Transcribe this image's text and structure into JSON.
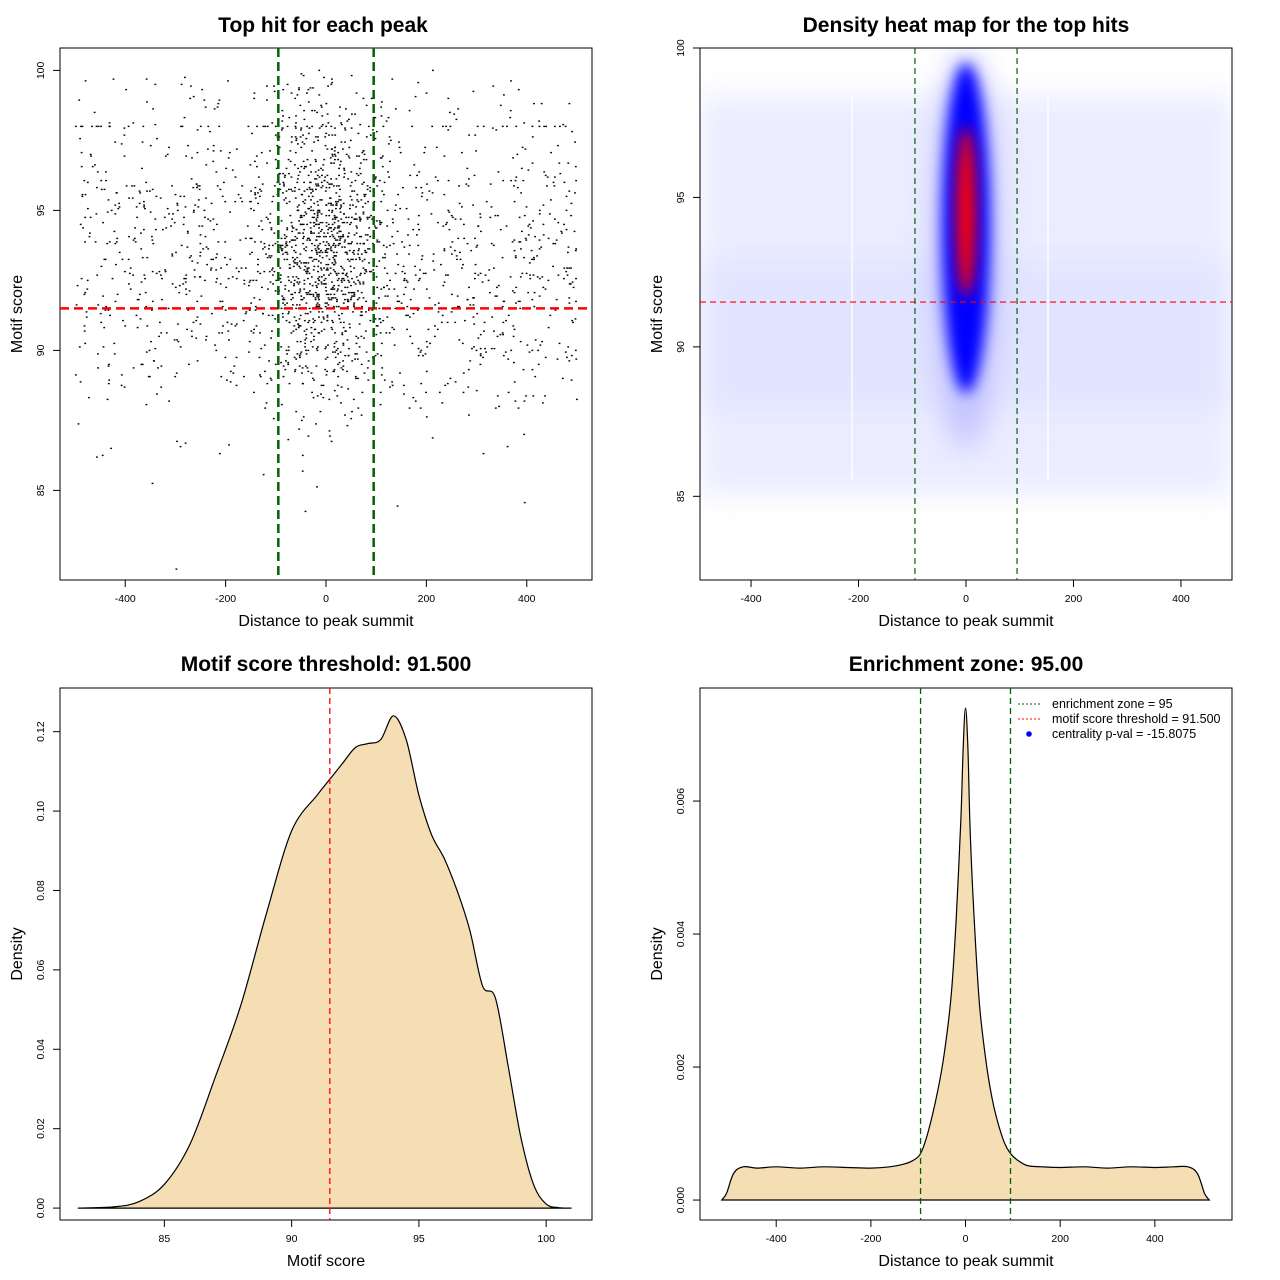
{
  "chart_data": [
    {
      "type": "scatter",
      "title": "Top hit for each peak",
      "xlabel": "Distance to peak summit",
      "ylabel": "Motif score",
      "xlim": [
        -530,
        530
      ],
      "ylim": [
        81.8,
        100.8
      ],
      "xticks": [
        -400,
        -200,
        0,
        200,
        400
      ],
      "yticks": [
        85,
        90,
        95,
        100
      ],
      "hline": {
        "y": 91.5,
        "color": "#ff0000"
      },
      "vlines": [
        {
          "x": -95,
          "color": "#006400"
        },
        {
          "x": 95,
          "color": "#006400"
        }
      ],
      "point_color": "#000000",
      "x_range": [
        -500,
        500
      ],
      "central_width": 60,
      "score_mean": 93.3,
      "score_sd": 3.1
    },
    {
      "type": "heatmap",
      "title": "Density heat map for the top hits",
      "xlabel": "Distance to peak summit",
      "ylabel": "Motif score",
      "xlim": [
        -495,
        495
      ],
      "ylim": [
        82.2,
        100
      ],
      "xticks": [
        -400,
        -200,
        0,
        200,
        400
      ],
      "yticks": [
        85,
        90,
        95,
        100
      ],
      "hline": {
        "y": 91.5,
        "color": "#ff0000"
      },
      "vlines": [
        {
          "x": -95,
          "color": "#006400"
        },
        {
          "x": 95,
          "color": "#006400"
        }
      ],
      "colorscale": [
        "#ffffff",
        "#0000ff",
        "#ff0000"
      ],
      "hotspot": {
        "x": 0,
        "y": 94.5
      }
    },
    {
      "type": "area",
      "title": "Motif score threshold: 91.500",
      "xlabel": "Motif score",
      "ylabel": "Density",
      "xlim": [
        80.9,
        101.8
      ],
      "ylim": [
        -0.003,
        0.131
      ],
      "xticks": [
        85,
        90,
        95,
        100
      ],
      "yticks": [
        0.0,
        0.02,
        0.04,
        0.06,
        0.08,
        0.1,
        0.12
      ],
      "ytick_labels": [
        "0.00",
        "0.02",
        "0.04",
        "0.06",
        "0.08",
        "0.10",
        "0.12"
      ],
      "vline": {
        "x": 91.5,
        "color": "#ff0000"
      },
      "fill": "#f5deb3",
      "x": [
        81.6,
        83.0,
        84.0,
        85.0,
        86.0,
        87.0,
        88.0,
        89.0,
        90.0,
        91.0,
        91.5,
        92.0,
        92.5,
        93.0,
        93.5,
        94.0,
        94.5,
        95.0,
        95.5,
        96.0,
        96.5,
        97.0,
        97.5,
        98.0,
        98.5,
        99.0,
        99.5,
        100.0,
        100.5,
        101.0
      ],
      "y": [
        0.0,
        0.0003,
        0.0016,
        0.006,
        0.016,
        0.033,
        0.051,
        0.074,
        0.095,
        0.104,
        0.108,
        0.112,
        0.116,
        0.117,
        0.118,
        0.124,
        0.118,
        0.104,
        0.094,
        0.088,
        0.08,
        0.07,
        0.056,
        0.053,
        0.036,
        0.018,
        0.006,
        0.001,
        0.0001,
        0.0
      ]
    },
    {
      "type": "area",
      "title": "Enrichment zone: 95.00",
      "xlabel": "Distance to peak summit",
      "ylabel": "Density",
      "xlim": [
        -561,
        563
      ],
      "ylim": [
        -0.0003,
        0.0077
      ],
      "xticks": [
        -400,
        -200,
        0,
        200,
        400
      ],
      "yticks": [
        0.0,
        0.002,
        0.004,
        0.006
      ],
      "ytick_labels": [
        "0.000",
        "0.002",
        "0.004",
        "0.006"
      ],
      "vlines": [
        {
          "x": -95,
          "color": "#006400"
        },
        {
          "x": 95,
          "color": "#006400"
        }
      ],
      "fill": "#f5deb3",
      "legend": {
        "position": "top-right",
        "items": [
          {
            "label": "enrichment zone = 95",
            "color": "#006400",
            "kind": "line"
          },
          {
            "label": "motif score threshold = 91.500",
            "color": "#ff0000",
            "kind": "line"
          },
          {
            "label": "centrality p-val = -15.8075",
            "color": "#0000ff",
            "kind": "point"
          }
        ]
      },
      "x": [
        -515,
        -505,
        -490,
        -470,
        -440,
        -400,
        -350,
        -300,
        -250,
        -200,
        -160,
        -130,
        -110,
        -95,
        -80,
        -60,
        -45,
        -30,
        -20,
        -10,
        -5,
        0,
        5,
        10,
        20,
        30,
        45,
        60,
        80,
        95,
        110,
        130,
        160,
        200,
        250,
        300,
        350,
        400,
        440,
        470,
        490,
        505,
        515
      ],
      "y": [
        0.0,
        0.0001,
        0.0004,
        0.0005,
        0.00048,
        0.0005,
        0.00048,
        0.0005,
        0.00049,
        0.00048,
        0.0005,
        0.00054,
        0.0006,
        0.0007,
        0.001,
        0.0016,
        0.0022,
        0.0031,
        0.0042,
        0.0057,
        0.0068,
        0.0074,
        0.0068,
        0.0055,
        0.004,
        0.0029,
        0.002,
        0.0014,
        0.0009,
        0.0007,
        0.0006,
        0.00052,
        0.0005,
        0.00049,
        0.0005,
        0.00048,
        0.0005,
        0.00049,
        0.0005,
        0.0005,
        0.0004,
        0.0001,
        0.0
      ]
    }
  ]
}
